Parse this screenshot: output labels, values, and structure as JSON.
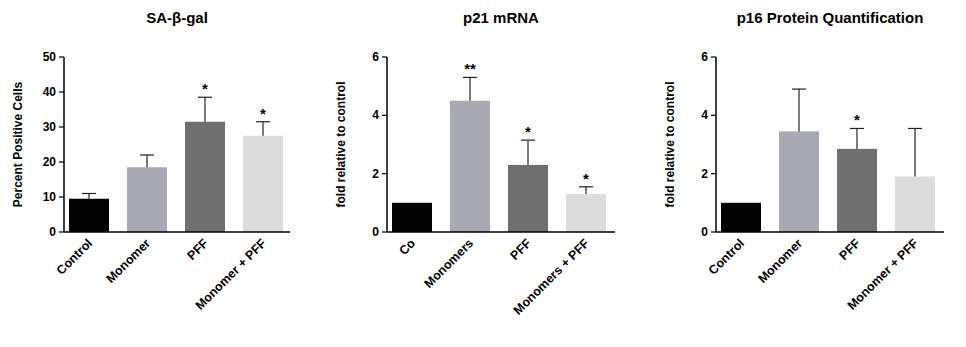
{
  "chart_data": [
    {
      "type": "bar",
      "title": "SA-β-gal",
      "y_label": "Percent Positive Cells",
      "categories": [
        "Control",
        "Monomer",
        "PFF",
        "Monomer + PFF"
      ],
      "values": [
        9.5,
        18.5,
        31.5,
        27.5
      ],
      "errors": [
        1.5,
        3.5,
        7,
        4
      ],
      "annotations": [
        null,
        null,
        "*",
        "*"
      ],
      "colors": [
        "#000000",
        "#a9a9b3",
        "#6f6f6f",
        "#dcdcdc"
      ],
      "ylim": [
        0,
        50
      ],
      "yticks": [
        0,
        10,
        20,
        30,
        40,
        50
      ]
    },
    {
      "type": "bar",
      "title": "p21 mRNA",
      "y_label": "fold relative to control",
      "categories": [
        "Co",
        "Monomers",
        "PFF",
        "Monomers + PFF"
      ],
      "values": [
        1,
        4.5,
        2.3,
        1.3
      ],
      "errors": [
        null,
        0.8,
        0.85,
        0.25
      ],
      "annotations": [
        null,
        "**",
        "*",
        "*"
      ],
      "colors": [
        "#000000",
        "#a9a9b3",
        "#6f6f6f",
        "#dcdcdc"
      ],
      "ylim": [
        0,
        6
      ],
      "yticks": [
        0,
        2,
        4,
        6
      ]
    },
    {
      "type": "bar",
      "title": "p16 Protein Quantification",
      "y_label": "fold relative to control",
      "categories": [
        "Control",
        "Monomer",
        "PFF",
        "Monomer + PFF"
      ],
      "values": [
        1,
        3.45,
        2.85,
        1.9
      ],
      "errors": [
        null,
        1.45,
        0.7,
        1.65
      ],
      "annotations": [
        null,
        null,
        "*",
        null
      ],
      "colors": [
        "#000000",
        "#a9a9b3",
        "#6f6f6f",
        "#dcdcdc"
      ],
      "ylim": [
        0,
        6
      ],
      "yticks": [
        0,
        2,
        4,
        6
      ]
    }
  ]
}
